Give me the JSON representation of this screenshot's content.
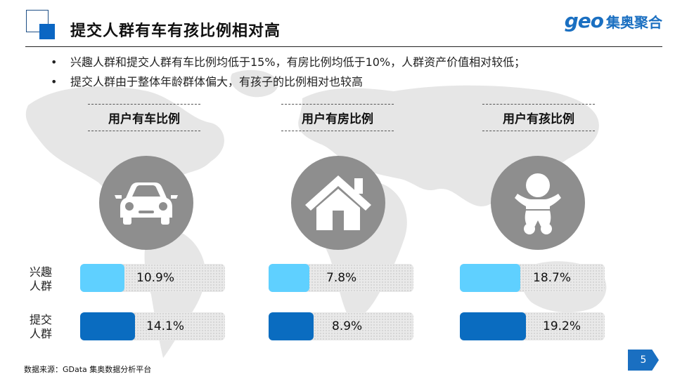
{
  "header": {
    "title": "提交人群有车有孩比例相对高",
    "brand_geo": "geo",
    "brand_cn": "集奥聚合"
  },
  "bullets": [
    "兴趣人群和提交人群有车比例均低于15%，有房比例均低于10%，人群资产价值相对较低；",
    "提交人群由于整体年龄群体偏大，有孩子的比例相对也较高"
  ],
  "bullet_marker": "•",
  "categories": [
    {
      "title": "用户有车比例",
      "icon": "car-icon",
      "interest": "10.9%",
      "submit": "14.1%",
      "interest_value": 10.9,
      "submit_value": 14.1
    },
    {
      "title": "用户有房比例",
      "icon": "house-icon",
      "interest": "7.8%",
      "submit": "8.9%",
      "interest_value": 7.8,
      "submit_value": 8.9
    },
    {
      "title": "用户有孩比例",
      "icon": "baby-icon",
      "interest": "18.7%",
      "submit": "19.2%",
      "interest_value": 18.7,
      "submit_value": 19.2
    }
  ],
  "row_labels": {
    "interest_line1": "兴趣",
    "interest_line2": "人群",
    "submit_line1": "提交",
    "submit_line2": "人群"
  },
  "colors": {
    "interest": "#5fd0ff",
    "submit": "#0a6cc0",
    "icon_circle": "#8e8e8e",
    "accent": "#1a6fc1"
  },
  "footer": {
    "source": "数据来源：GData  集奥数据分析平台",
    "page_number": "5"
  }
}
